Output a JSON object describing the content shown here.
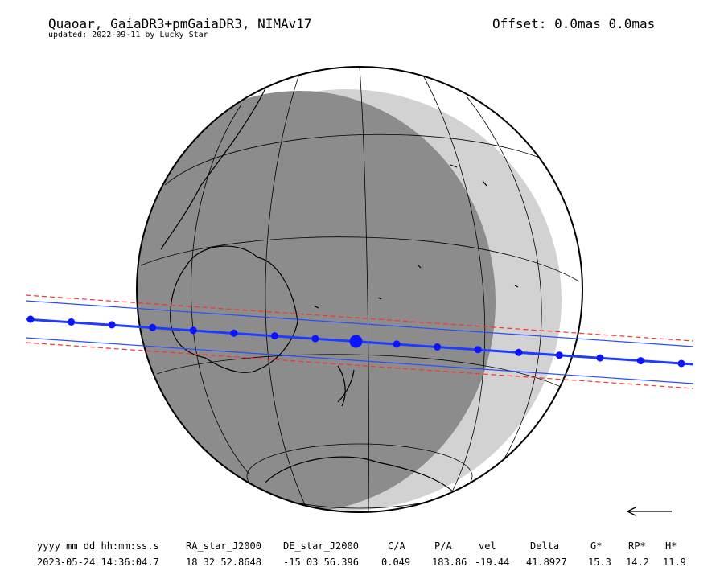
{
  "header": {
    "title": "Quaoar, GaiaDR3+pmGaiaDR3, NIMAv17",
    "subtitle": "updated: 2022-09-11 by Lucky Star",
    "offset": "Offset: 0.0mas 0.0mas"
  },
  "colors": {
    "globe_outline": "#000000",
    "night_shade": "#8c8c8c",
    "twilight_shade": "#d2d2d2",
    "path_center": "#1f3bff",
    "path_edges": "#2b4bff",
    "uncertainty": "#ff3030",
    "time_markers": "#0a14ff",
    "coastlines": "#000000"
  },
  "map": {
    "projection": "orthographic",
    "shadow_path": "path_center",
    "direction_icon": "arrow-left-icon"
  },
  "table": {
    "headers": [
      "yyyy mm dd hh:mm:ss.s",
      "RA_star_J2000",
      "DE_star_J2000",
      "C/A",
      "P/A",
      "vel",
      "Delta",
      "G*",
      "RP*",
      "H*"
    ],
    "values": [
      "2023-05-24 14:36:04.7",
      "18 32 52.8648",
      "-15 03 56.396",
      "0.049",
      "183.86",
      "-19.44",
      "41.8927",
      "15.3",
      "14.2",
      "11.9"
    ]
  }
}
